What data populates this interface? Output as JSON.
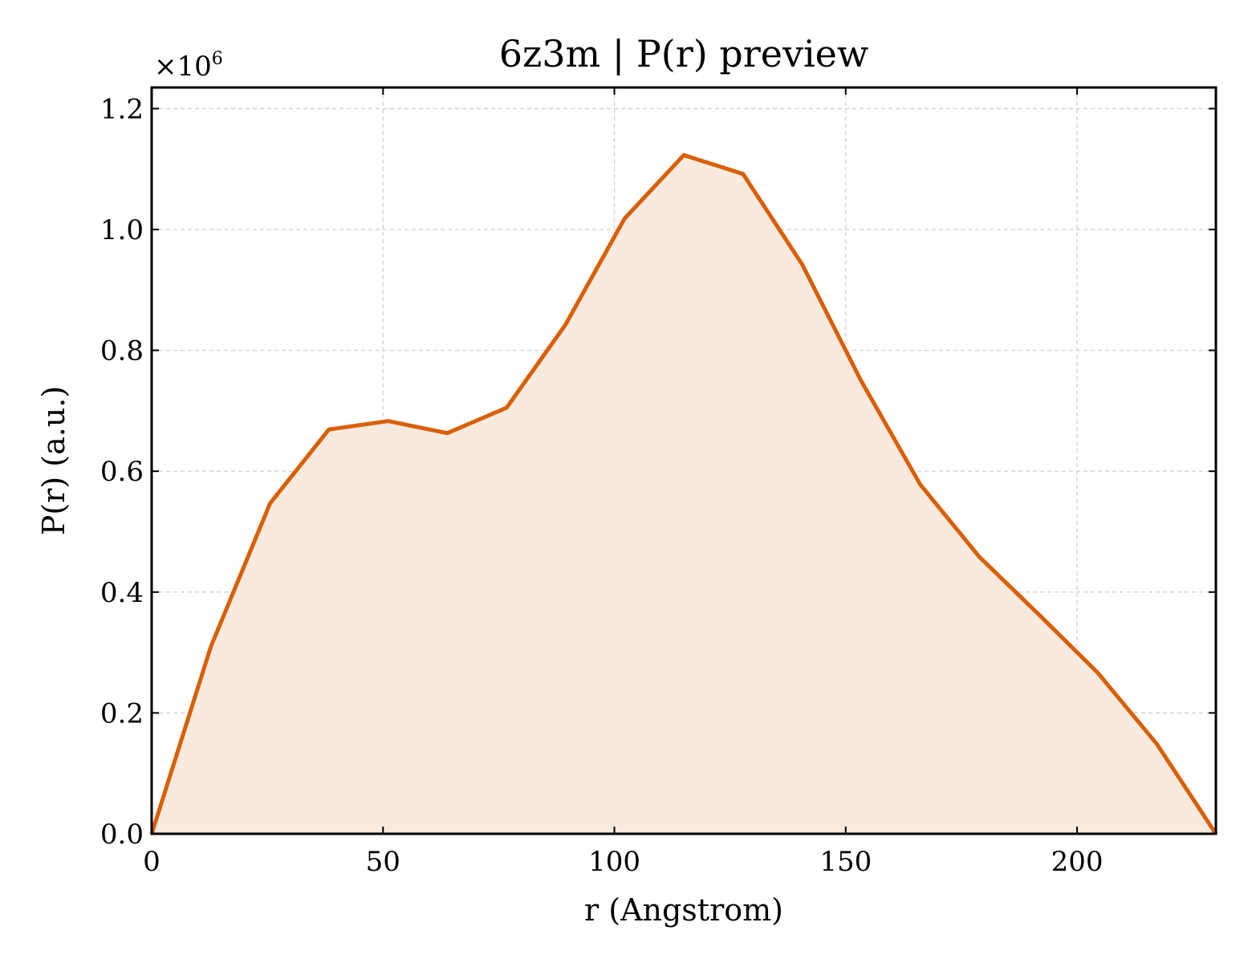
{
  "chart_data": {
    "type": "area",
    "title": "6z3m | P(r) preview",
    "xlabel": "r (Angstrom)",
    "ylabel": "P(r) (a.u.)",
    "y_multiplier": "×10",
    "y_exponent": "6",
    "xlim": [
      0,
      230
    ],
    "ylim": [
      0,
      1.235
    ],
    "xticks": [
      0,
      50,
      100,
      150,
      200
    ],
    "yticks": [
      0.0,
      0.2,
      0.4,
      0.6,
      0.8,
      1.0,
      1.2
    ],
    "x_tick_labels": [
      "0",
      "50",
      "100",
      "150",
      "200"
    ],
    "y_tick_labels": [
      "0.0",
      "0.2",
      "0.4",
      "0.6",
      "0.8",
      "1.0",
      "1.2"
    ],
    "grid": true,
    "line_color": "#d95f02",
    "fill_color": "#f8eadf",
    "series": [
      {
        "x": [
          0,
          12.8,
          25.6,
          38.3,
          51.1,
          63.9,
          76.7,
          89.4,
          102.2,
          115.0,
          127.8,
          140.6,
          153.3,
          166.1,
          178.9,
          191.7,
          204.4,
          217.2,
          230.0
        ],
        "y": [
          0.0,
          0.31,
          0.547,
          0.669,
          0.683,
          0.663,
          0.705,
          0.842,
          1.018,
          1.123,
          1.092,
          0.942,
          0.75,
          0.578,
          0.458,
          0.363,
          0.267,
          0.149,
          0.0
        ]
      }
    ]
  }
}
